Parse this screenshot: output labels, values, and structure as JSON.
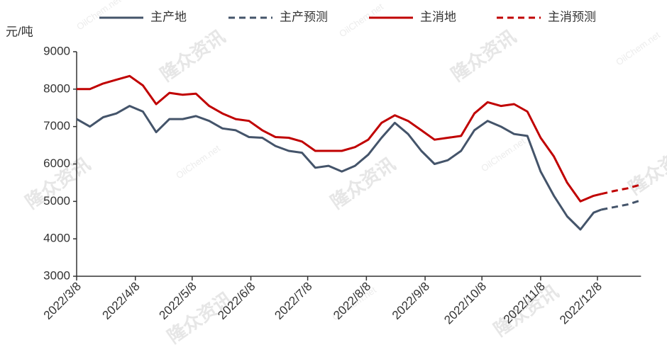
{
  "chart_data": {
    "type": "line",
    "y_label": "元/吨",
    "watermark": [
      "隆众资讯",
      "OilChem.net"
    ],
    "x": [
      "2022/3/8",
      "2022/3/15",
      "2022/3/22",
      "2022/3/29",
      "2022/4/5",
      "2022/4/12",
      "2022/4/19",
      "2022/4/26",
      "2022/5/3",
      "2022/5/10",
      "2022/5/17",
      "2022/5/24",
      "2022/5/31",
      "2022/6/7",
      "2022/6/14",
      "2022/6/21",
      "2022/6/28",
      "2022/7/5",
      "2022/7/12",
      "2022/7/19",
      "2022/7/26",
      "2022/8/2",
      "2022/8/9",
      "2022/8/16",
      "2022/8/23",
      "2022/8/30",
      "2022/9/6",
      "2022/9/13",
      "2022/9/20",
      "2022/9/27",
      "2022/10/4",
      "2022/10/11",
      "2022/10/18",
      "2022/10/25",
      "2022/11/1",
      "2022/11/8",
      "2022/11/15",
      "2022/11/22",
      "2022/11/29",
      "2022/12/6",
      "2022/12/10",
      "2022/12/17",
      "2022/12/24",
      "2022/12/31"
    ],
    "xlim": [
      "2022/3/8",
      "2022/12/31"
    ],
    "xticks": [
      "2022/3/8",
      "2022/4/8",
      "2022/5/8",
      "2022/6/8",
      "2022/7/8",
      "2022/8/8",
      "2022/9/8",
      "2022/10/8",
      "2022/11/8",
      "2022/12/8"
    ],
    "ylim": [
      3000,
      9000
    ],
    "yticks": [
      3000,
      4000,
      5000,
      6000,
      7000,
      8000,
      9000
    ],
    "grid": false,
    "series": [
      {
        "name": "主产地",
        "color": "#44546a",
        "line_style": "solid",
        "values": [
          7200,
          7000,
          7250,
          7350,
          7550,
          7400,
          6850,
          7200,
          7200,
          7280,
          7150,
          6950,
          6900,
          6720,
          6700,
          6480,
          6350,
          6300,
          5900,
          5950,
          5800,
          5950,
          6250,
          6700,
          7100,
          6800,
          6350,
          6000,
          6100,
          6350,
          6900,
          7150,
          7000,
          6800,
          6750,
          5800,
          5150,
          4600,
          4250,
          4700,
          4780,
          null,
          null,
          null
        ]
      },
      {
        "name": "主产预测",
        "color": "#44546a",
        "line_style": "dashed",
        "values": [
          null,
          null,
          null,
          null,
          null,
          null,
          null,
          null,
          null,
          null,
          null,
          null,
          null,
          null,
          null,
          null,
          null,
          null,
          null,
          null,
          null,
          null,
          null,
          null,
          null,
          null,
          null,
          null,
          null,
          null,
          null,
          null,
          null,
          null,
          null,
          null,
          null,
          null,
          null,
          null,
          4780,
          4850,
          4920,
          5030
        ]
      },
      {
        "name": "主消地",
        "color": "#c00000",
        "line_style": "solid",
        "values": [
          8000,
          8000,
          8150,
          8250,
          8350,
          8100,
          7600,
          7900,
          7850,
          7880,
          7550,
          7350,
          7200,
          7150,
          6900,
          6720,
          6700,
          6600,
          6350,
          6350,
          6350,
          6450,
          6650,
          7100,
          7300,
          7150,
          6900,
          6650,
          6700,
          6750,
          7350,
          7650,
          7550,
          7600,
          7400,
          6700,
          6200,
          5500,
          5000,
          5150,
          5200,
          null,
          null,
          null
        ]
      },
      {
        "name": "主消预测",
        "color": "#c00000",
        "line_style": "dashed",
        "values": [
          null,
          null,
          null,
          null,
          null,
          null,
          null,
          null,
          null,
          null,
          null,
          null,
          null,
          null,
          null,
          null,
          null,
          null,
          null,
          null,
          null,
          null,
          null,
          null,
          null,
          null,
          null,
          null,
          null,
          null,
          null,
          null,
          null,
          null,
          null,
          null,
          null,
          null,
          null,
          null,
          5200,
          5280,
          5350,
          5450
        ]
      }
    ]
  }
}
